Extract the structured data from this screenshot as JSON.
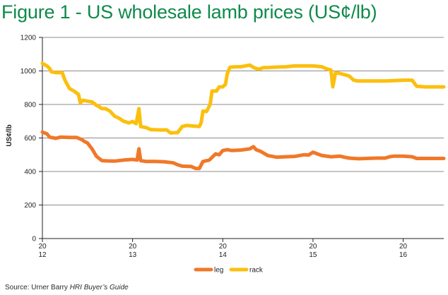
{
  "title": "Figure 1 - US wholesale lamb prices (US¢/lb)",
  "source": {
    "prefix": "Source: Urner Barry ",
    "italic": "HRI Buyer’s Guide"
  },
  "colors": {
    "title": "#0e8a4a",
    "leg": "#f07828",
    "rack": "#fbbf0e",
    "grid": "#8c8c8c",
    "axis": "#222222"
  },
  "chart_data": {
    "type": "line",
    "title": "",
    "xlabel": "",
    "ylabel": "US¢/lb",
    "ylim": [
      0,
      1200
    ],
    "yticks": [
      0,
      200,
      400,
      600,
      800,
      1000,
      1200
    ],
    "grid": "horizontal",
    "legend_position": "bottom",
    "xlim": [
      2012.0,
      2016.45
    ],
    "xticks": [
      {
        "x": 2012,
        "line1": "20",
        "line2": "12"
      },
      {
        "x": 2013,
        "line1": "20",
        "line2": "13"
      },
      {
        "x": 2014,
        "line1": "20",
        "line2": "14"
      },
      {
        "x": 2015,
        "line1": "20",
        "line2": "15"
      },
      {
        "x": 2016,
        "line1": "20",
        "line2": "16"
      }
    ],
    "series": [
      {
        "name": "leg",
        "color": "#f07828",
        "points": [
          [
            2012.0,
            635
          ],
          [
            2012.05,
            625
          ],
          [
            2012.08,
            605
          ],
          [
            2012.15,
            598
          ],
          [
            2012.2,
            605
          ],
          [
            2012.3,
            603
          ],
          [
            2012.38,
            603
          ],
          [
            2012.43,
            592
          ],
          [
            2012.47,
            578
          ],
          [
            2012.5,
            570
          ],
          [
            2012.55,
            535
          ],
          [
            2012.6,
            490
          ],
          [
            2012.66,
            465
          ],
          [
            2012.72,
            463
          ],
          [
            2012.8,
            462
          ],
          [
            2012.9,
            468
          ],
          [
            2013.0,
            472
          ],
          [
            2013.05,
            468
          ],
          [
            2013.07,
            535
          ],
          [
            2013.09,
            465
          ],
          [
            2013.15,
            460
          ],
          [
            2013.25,
            460
          ],
          [
            2013.35,
            458
          ],
          [
            2013.45,
            452
          ],
          [
            2013.5,
            440
          ],
          [
            2013.55,
            432
          ],
          [
            2013.65,
            430
          ],
          [
            2013.7,
            418
          ],
          [
            2013.74,
            418
          ],
          [
            2013.78,
            460
          ],
          [
            2013.85,
            468
          ],
          [
            2013.92,
            505
          ],
          [
            2013.96,
            500
          ],
          [
            2014.0,
            525
          ],
          [
            2014.05,
            530
          ],
          [
            2014.1,
            525
          ],
          [
            2014.2,
            528
          ],
          [
            2014.3,
            535
          ],
          [
            2014.34,
            548
          ],
          [
            2014.37,
            530
          ],
          [
            2014.42,
            520
          ],
          [
            2014.5,
            495
          ],
          [
            2014.6,
            485
          ],
          [
            2014.7,
            488
          ],
          [
            2014.8,
            490
          ],
          [
            2014.9,
            500
          ],
          [
            2014.95,
            498
          ],
          [
            2015.0,
            515
          ],
          [
            2015.05,
            505
          ],
          [
            2015.1,
            495
          ],
          [
            2015.2,
            488
          ],
          [
            2015.3,
            492
          ],
          [
            2015.35,
            485
          ],
          [
            2015.4,
            480
          ],
          [
            2015.5,
            476
          ],
          [
            2015.6,
            478
          ],
          [
            2015.7,
            480
          ],
          [
            2015.8,
            480
          ],
          [
            2015.85,
            488
          ],
          [
            2015.9,
            492
          ],
          [
            2016.0,
            492
          ],
          [
            2016.1,
            488
          ],
          [
            2016.15,
            478
          ],
          [
            2016.3,
            478
          ],
          [
            2016.45,
            478
          ]
        ]
      },
      {
        "name": "rack",
        "color": "#fbbf0e",
        "points": [
          [
            2012.0,
            1045
          ],
          [
            2012.05,
            1030
          ],
          [
            2012.08,
            1015
          ],
          [
            2012.1,
            995
          ],
          [
            2012.15,
            990
          ],
          [
            2012.22,
            990
          ],
          [
            2012.25,
            945
          ],
          [
            2012.3,
            895
          ],
          [
            2012.35,
            880
          ],
          [
            2012.4,
            860
          ],
          [
            2012.42,
            810
          ],
          [
            2012.45,
            825
          ],
          [
            2012.5,
            820
          ],
          [
            2012.55,
            815
          ],
          [
            2012.6,
            795
          ],
          [
            2012.62,
            790
          ],
          [
            2012.66,
            775
          ],
          [
            2012.7,
            775
          ],
          [
            2012.75,
            760
          ],
          [
            2012.8,
            730
          ],
          [
            2012.85,
            718
          ],
          [
            2012.9,
            700
          ],
          [
            2012.96,
            690
          ],
          [
            2013.0,
            698
          ],
          [
            2013.04,
            685
          ],
          [
            2013.07,
            775
          ],
          [
            2013.09,
            668
          ],
          [
            2013.15,
            662
          ],
          [
            2013.2,
            650
          ],
          [
            2013.3,
            648
          ],
          [
            2013.38,
            648
          ],
          [
            2013.42,
            630
          ],
          [
            2013.5,
            632
          ],
          [
            2013.55,
            668
          ],
          [
            2013.6,
            675
          ],
          [
            2013.7,
            670
          ],
          [
            2013.74,
            668
          ],
          [
            2013.76,
            690
          ],
          [
            2013.78,
            760
          ],
          [
            2013.82,
            758
          ],
          [
            2013.86,
            800
          ],
          [
            2013.88,
            880
          ],
          [
            2013.93,
            880
          ],
          [
            2013.96,
            905
          ],
          [
            2014.0,
            905
          ],
          [
            2014.03,
            920
          ],
          [
            2014.05,
            985
          ],
          [
            2014.08,
            1022
          ],
          [
            2014.15,
            1025
          ],
          [
            2014.2,
            1025
          ],
          [
            2014.25,
            1030
          ],
          [
            2014.3,
            1035
          ],
          [
            2014.35,
            1018
          ],
          [
            2014.4,
            1010
          ],
          [
            2014.45,
            1020
          ],
          [
            2014.5,
            1020
          ],
          [
            2014.6,
            1023
          ],
          [
            2014.7,
            1025
          ],
          [
            2014.8,
            1030
          ],
          [
            2014.9,
            1030
          ],
          [
            2015.0,
            1030
          ],
          [
            2015.1,
            1025
          ],
          [
            2015.15,
            1012
          ],
          [
            2015.2,
            1005
          ],
          [
            2015.22,
            905
          ],
          [
            2015.25,
            990
          ],
          [
            2015.3,
            985
          ],
          [
            2015.4,
            970
          ],
          [
            2015.45,
            945
          ],
          [
            2015.5,
            940
          ],
          [
            2015.6,
            940
          ],
          [
            2015.7,
            940
          ],
          [
            2015.8,
            940
          ],
          [
            2015.9,
            942
          ],
          [
            2016.0,
            945
          ],
          [
            2016.1,
            945
          ],
          [
            2016.15,
            908
          ],
          [
            2016.25,
            905
          ],
          [
            2016.35,
            905
          ],
          [
            2016.45,
            905
          ]
        ]
      }
    ]
  }
}
